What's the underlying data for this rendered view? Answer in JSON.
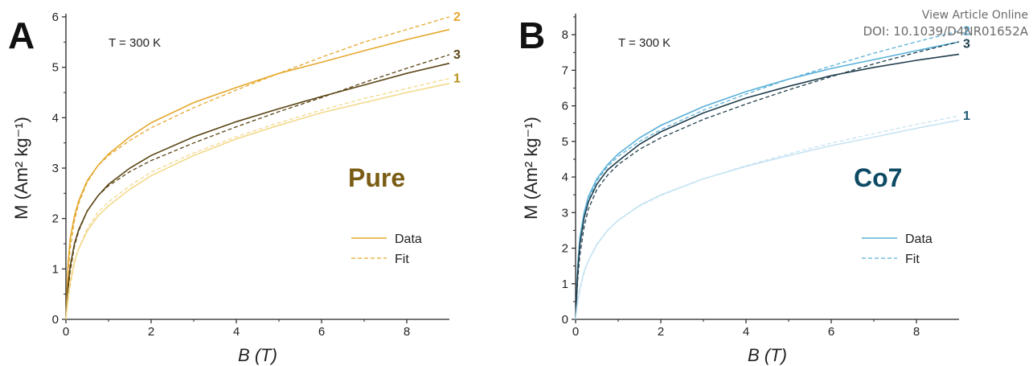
{
  "watermark": {
    "line1": "View Article Online",
    "line2": "DOI: 10.1039/D4NR01652A"
  },
  "chart_data": [
    {
      "type": "line",
      "panel_letter": "A",
      "title": "Pure",
      "temperature_label": "T = 300 K",
      "xlabel": "B (T)",
      "ylabel": "M (Am² kg⁻¹)",
      "xlim": [
        0,
        9
      ],
      "ylim": [
        0,
        6
      ],
      "xticks": [
        0,
        2,
        4,
        6,
        8
      ],
      "yticks": [
        0,
        1,
        2,
        3,
        4,
        5,
        6
      ],
      "grid": false,
      "legend": {
        "position": "center-right",
        "entries": [
          "Data",
          "Fit"
        ]
      },
      "title_color": "#7a5c14",
      "x": [
        0,
        0.05,
        0.1,
        0.2,
        0.3,
        0.5,
        0.75,
        1,
        1.5,
        2,
        3,
        4,
        5,
        6,
        7,
        8,
        9
      ],
      "series": [
        {
          "name": "2",
          "kind": "data",
          "color": "#e5a82e",
          "values": [
            0,
            1.1,
            1.6,
            2.05,
            2.35,
            2.75,
            3.05,
            3.28,
            3.62,
            3.9,
            4.3,
            4.6,
            4.88,
            5.1,
            5.33,
            5.55,
            5.75
          ]
        },
        {
          "name": "2",
          "kind": "fit",
          "color": "#e5a82e",
          "values": [
            0,
            0.9,
            1.4,
            1.95,
            2.3,
            2.72,
            3.05,
            3.25,
            3.55,
            3.8,
            4.2,
            4.55,
            4.88,
            5.2,
            5.5,
            5.75,
            6.0
          ]
        },
        {
          "name": "3",
          "kind": "data",
          "color": "#5a4514",
          "values": [
            0,
            0.65,
            1.05,
            1.5,
            1.78,
            2.15,
            2.45,
            2.68,
            3.0,
            3.25,
            3.62,
            3.92,
            4.18,
            4.42,
            4.65,
            4.88,
            5.08
          ]
        },
        {
          "name": "3",
          "kind": "fit",
          "color": "#5a4514",
          "values": [
            0,
            0.55,
            0.95,
            1.45,
            1.75,
            2.15,
            2.45,
            2.65,
            2.93,
            3.15,
            3.5,
            3.82,
            4.12,
            4.4,
            4.7,
            4.98,
            5.25
          ]
        },
        {
          "name": "1",
          "kind": "data",
          "color": "#f3d98c",
          "values": [
            0,
            0.45,
            0.75,
            1.15,
            1.4,
            1.75,
            2.05,
            2.25,
            2.58,
            2.85,
            3.25,
            3.58,
            3.85,
            4.1,
            4.3,
            4.5,
            4.68
          ]
        },
        {
          "name": "1",
          "kind": "fit",
          "color": "#f3d98c",
          "values": [
            0,
            0.35,
            0.65,
            1.1,
            1.4,
            1.8,
            2.12,
            2.33,
            2.65,
            2.92,
            3.3,
            3.62,
            3.9,
            4.15,
            4.38,
            4.58,
            4.78
          ]
        }
      ]
    },
    {
      "type": "line",
      "panel_letter": "B",
      "title": "Co7",
      "temperature_label": "T = 300 K",
      "xlabel": "B (T)",
      "ylabel": "M (Am² kg⁻¹)",
      "xlim": [
        0,
        9
      ],
      "ylim": [
        0,
        8.5
      ],
      "xticks": [
        0,
        2,
        4,
        6,
        8
      ],
      "yticks": [
        0,
        1,
        2,
        3,
        4,
        5,
        6,
        7,
        8
      ],
      "grid": false,
      "legend": {
        "position": "center-right",
        "entries": [
          "Data",
          "Fit"
        ]
      },
      "title_color": "#0d4a63",
      "x": [
        0,
        0.05,
        0.1,
        0.2,
        0.3,
        0.5,
        0.75,
        1,
        1.5,
        2,
        3,
        4,
        5,
        6,
        7,
        8,
        9
      ],
      "series": [
        {
          "name": "2",
          "kind": "data",
          "color": "#5ab0d8",
          "values": [
            0,
            1.5,
            2.3,
            3.0,
            3.45,
            3.95,
            4.35,
            4.65,
            5.1,
            5.45,
            5.98,
            6.4,
            6.75,
            7.05,
            7.3,
            7.55,
            7.8
          ]
        },
        {
          "name": "2",
          "kind": "fit",
          "color": "#5ab0d8",
          "values": [
            0,
            1.3,
            2.1,
            2.9,
            3.35,
            3.9,
            4.3,
            4.58,
            5.0,
            5.33,
            5.88,
            6.33,
            6.75,
            7.12,
            7.48,
            7.8,
            8.1
          ]
        },
        {
          "name": "3",
          "kind": "data",
          "color": "#1f3e4d",
          "values": [
            0,
            1.3,
            2.1,
            2.85,
            3.3,
            3.8,
            4.2,
            4.45,
            4.92,
            5.27,
            5.8,
            6.22,
            6.55,
            6.85,
            7.08,
            7.28,
            7.45
          ]
        },
        {
          "name": "3",
          "kind": "fit",
          "color": "#1f3e4d",
          "values": [
            0,
            1.1,
            1.8,
            2.6,
            3.1,
            3.65,
            4.05,
            4.35,
            4.78,
            5.1,
            5.62,
            6.05,
            6.45,
            6.82,
            7.18,
            7.5,
            7.8
          ]
        },
        {
          "name": "1",
          "kind": "data",
          "color": "#c7e4f3",
          "values": [
            0,
            0.5,
            0.85,
            1.35,
            1.65,
            2.1,
            2.5,
            2.78,
            3.2,
            3.5,
            3.95,
            4.3,
            4.6,
            4.88,
            5.12,
            5.37,
            5.6
          ]
        },
        {
          "name": "1",
          "kind": "fit",
          "color": "#c7e4f3",
          "values": [
            0,
            0.45,
            0.8,
            1.3,
            1.65,
            2.12,
            2.5,
            2.78,
            3.18,
            3.48,
            3.95,
            4.32,
            4.65,
            4.95,
            5.22,
            5.48,
            5.72
          ]
        }
      ]
    }
  ]
}
